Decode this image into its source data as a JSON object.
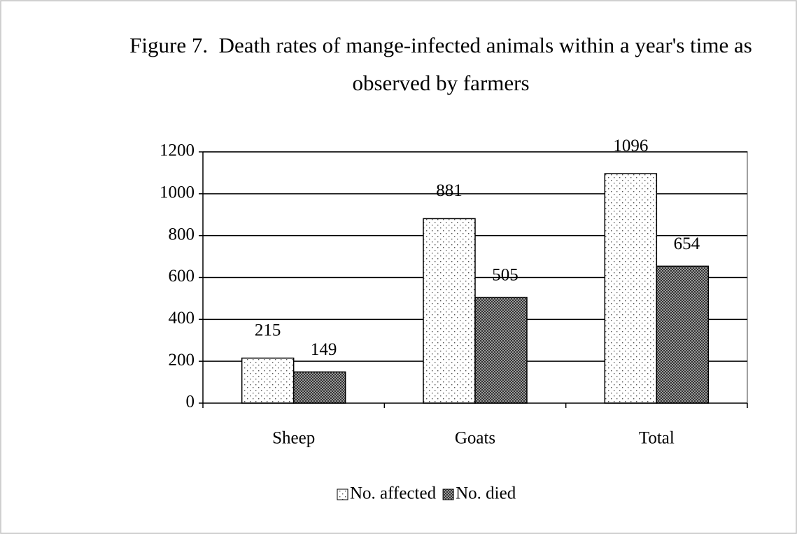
{
  "chart_data": {
    "type": "bar",
    "title": "Figure 7.  Death rates of mange-infected animals within a year's time as observed by farmers",
    "categories": [
      "Sheep",
      "Goats",
      "Total"
    ],
    "series": [
      {
        "name": "No. affected",
        "color": "#ffffff",
        "pattern": "dots",
        "values": [
          215,
          881,
          1096
        ]
      },
      {
        "name": "No. died",
        "color": "#808080",
        "pattern": "crosshatch",
        "values": [
          149,
          505,
          654
        ]
      }
    ],
    "ylim": [
      0,
      1200
    ],
    "yticks": [
      0,
      200,
      400,
      600,
      800,
      1000,
      1200
    ],
    "grid": true,
    "legend": "bottom"
  }
}
